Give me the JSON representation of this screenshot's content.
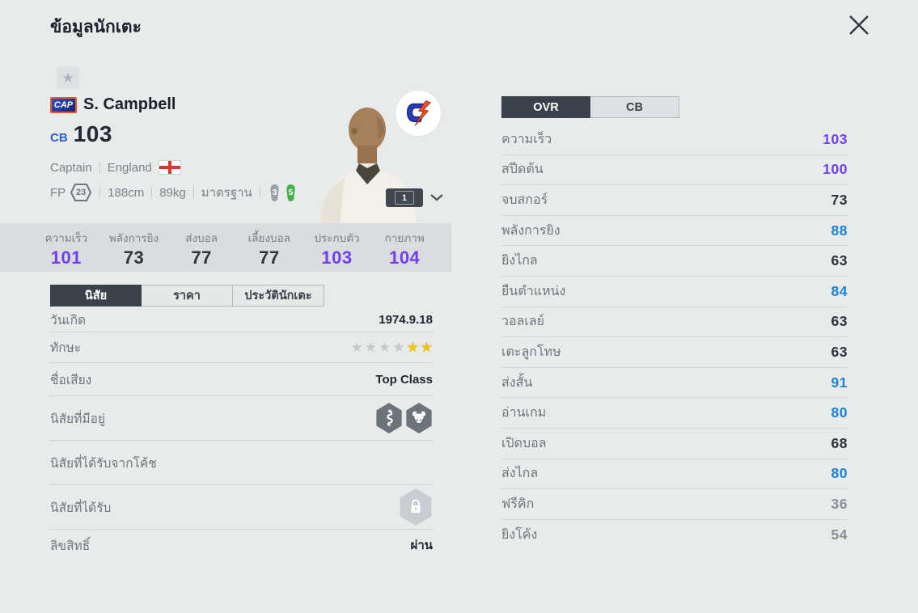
{
  "header": {
    "title": "ข้อมูลนักเตะ"
  },
  "player": {
    "badge": "CAP",
    "name": "S. Campbell",
    "position": "CB",
    "rating": "103",
    "role": "Captain",
    "nation": "England",
    "fp_label": "FP",
    "fp_value": "23",
    "height": "188cm",
    "weight": "89kg",
    "grade": "มาตรฐาน",
    "boots": [
      {
        "value": "3",
        "color": "#9ba1a7"
      },
      {
        "value": "5",
        "color": "#43b04a"
      }
    ],
    "level_badge": "1",
    "emblem_icon": "team-lightning-emblem",
    "favorite_icon": "star-icon"
  },
  "hex_stats": [
    {
      "label": "ความเร็ว",
      "value": "101",
      "color": "#6d40f2"
    },
    {
      "label": "พลังการยิง",
      "value": "73",
      "color": "#2e333c"
    },
    {
      "label": "ส่งบอล",
      "value": "77",
      "color": "#2e333c"
    },
    {
      "label": "เลี้ยงบอล",
      "value": "77",
      "color": "#2e333c"
    },
    {
      "label": "ประกบตัว",
      "value": "103",
      "color": "#6d40f2"
    },
    {
      "label": "กายภาพ",
      "value": "104",
      "color": "#6d40f2"
    }
  ],
  "info_tabs": [
    {
      "label": "นิสัย",
      "active": true
    },
    {
      "label": "ราคา",
      "active": false
    },
    {
      "label": "ประวัตินักเตะ",
      "active": false
    }
  ],
  "info_rows": [
    {
      "label": "วันเกิด",
      "type": "text",
      "value": "1974.9.18"
    },
    {
      "label": "ทักษะ",
      "type": "stars",
      "gray": 4,
      "filled": 2
    },
    {
      "label": "ชื่อเสียง",
      "type": "text",
      "value": "Top Class"
    },
    {
      "label": "นิสัยที่มีอยู่",
      "type": "traits",
      "icons": [
        "snake-trait-icon",
        "buffalo-trait-icon"
      ]
    },
    {
      "label": "นิสัยที่ได้รับจากโค้ช",
      "type": "empty"
    },
    {
      "label": "นิสัยที่ได้รับ",
      "type": "lock",
      "icon": "lock-icon"
    },
    {
      "label": "ลิขสิทธิ์",
      "type": "text",
      "value": "ผ่าน"
    }
  ],
  "right_panel": {
    "tabs": [
      {
        "label": "OVR",
        "active": true
      },
      {
        "label": "CB",
        "active": false
      }
    ],
    "stats": [
      {
        "label": "ความเร็ว",
        "value": "103",
        "color": "#6d40f2"
      },
      {
        "label": "สปีดต้น",
        "value": "100",
        "color": "#6d40f2"
      },
      {
        "label": "จบสกอร์",
        "value": "73",
        "color": "#2e333c"
      },
      {
        "label": "พลังการยิง",
        "value": "88",
        "color": "#1b84dd"
      },
      {
        "label": "ยิงไกล",
        "value": "63",
        "color": "#2e333c"
      },
      {
        "label": "ยืนตำแหน่ง",
        "value": "84",
        "color": "#1b84dd"
      },
      {
        "label": "วอลเลย์",
        "value": "63",
        "color": "#2e333c"
      },
      {
        "label": "เตะลูกโทษ",
        "value": "63",
        "color": "#2e333c"
      },
      {
        "label": "ส่งสั้น",
        "value": "91",
        "color": "#1b84dd"
      },
      {
        "label": "อ่านเกม",
        "value": "80",
        "color": "#1b84dd"
      },
      {
        "label": "เปิดบอล",
        "value": "68",
        "color": "#2e333c"
      },
      {
        "label": "ส่งไกล",
        "value": "80",
        "color": "#1b84dd"
      },
      {
        "label": "ฟรีคิก",
        "value": "36",
        "color": "#8a9098"
      },
      {
        "label": "ยิงโค้ง",
        "value": "54",
        "color": "#8a9098"
      }
    ]
  },
  "colors": {
    "accent_purple": "#6d40f2",
    "accent_blue": "#1b84dd",
    "stat_dark": "#2e333c",
    "stat_gray": "#8a9098",
    "boot_green": "#43b04a",
    "boot_gray": "#9ba1a7"
  }
}
